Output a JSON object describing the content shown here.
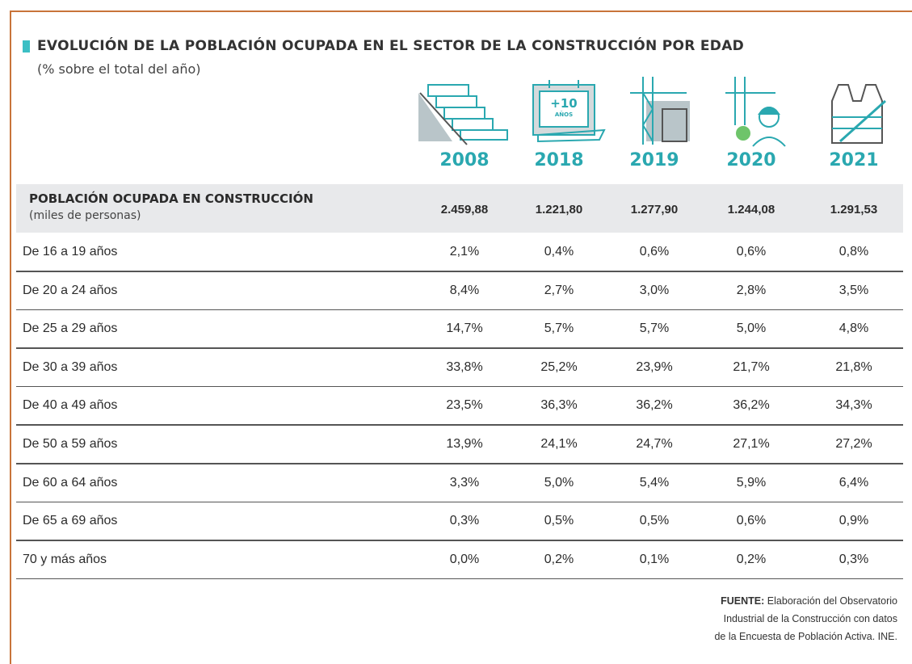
{
  "title": "EVOLUCIÓN DE LA POBLACIÓN OCUPADA EN EL SECTOR DE LA CONSTRUCCIÓN POR EDAD",
  "subtitle": "(% sobre el total del año)",
  "icon_badge": {
    "number": "+10",
    "text": "AÑOS"
  },
  "table": {
    "columns": [
      "2008",
      "2018",
      "2019",
      "2020",
      "2021"
    ],
    "header_row": {
      "label": "POBLACIÓN OCUPADA EN CONSTRUCCIÓN",
      "sublabel": "(miles de personas)",
      "values": [
        "2.459,88",
        "1.221,80",
        "1.277,90",
        "1.244,08",
        "1.291,53"
      ]
    },
    "rows": [
      {
        "label": "De 16 a 19 años",
        "values": [
          "2,1%",
          "0,4%",
          "0,6%",
          "0,6%",
          "0,8%"
        ]
      },
      {
        "label": "De 20 a 24 años",
        "values": [
          "8,4%",
          "2,7%",
          "3,0%",
          "2,8%",
          "3,5%"
        ]
      },
      {
        "label": "De 25 a 29 años",
        "values": [
          "14,7%",
          "5,7%",
          "5,7%",
          "5,0%",
          "4,8%"
        ]
      },
      {
        "label": "De 30 a 39 años",
        "values": [
          "33,8%",
          "25,2%",
          "23,9%",
          "21,7%",
          "21,8%"
        ]
      },
      {
        "label": "De 40 a 49 años",
        "values": [
          "23,5%",
          "36,3%",
          "36,2%",
          "36,2%",
          "34,3%"
        ]
      },
      {
        "label": "De 50 a 59 años",
        "values": [
          "13,9%",
          "24,1%",
          "24,7%",
          "27,1%",
          "27,2%"
        ]
      },
      {
        "label": "De 60 a 64 años",
        "values": [
          "3,3%",
          "5,0%",
          "5,4%",
          "5,9%",
          "6,4%"
        ]
      },
      {
        "label": "De 65 a 69 años",
        "values": [
          "0,3%",
          "0,5%",
          "0,5%",
          "0,6%",
          "0,9%"
        ]
      },
      {
        "label": "70 y más años",
        "values": [
          "0,0%",
          "0,2%",
          "0,1%",
          "0,2%",
          "0,3%"
        ]
      }
    ]
  },
  "source": {
    "label": "FUENTE:",
    "lines": [
      "Elaboración del Observatorio",
      "Industrial de la Construcción con datos",
      "de la Encuesta de Población Activa. INE."
    ]
  }
}
